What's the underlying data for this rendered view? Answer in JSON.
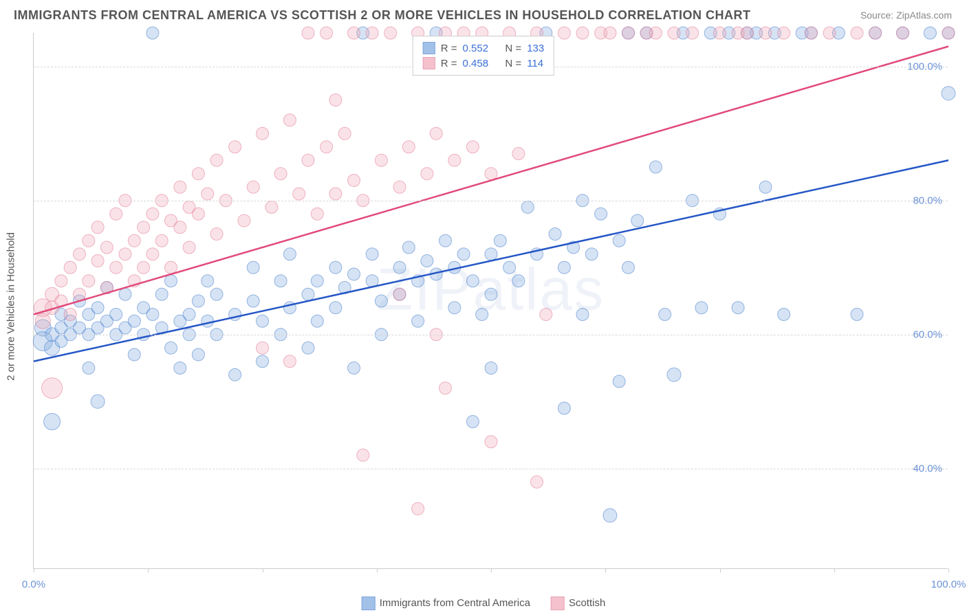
{
  "title": "IMMIGRANTS FROM CENTRAL AMERICA VS SCOTTISH 2 OR MORE VEHICLES IN HOUSEHOLD CORRELATION CHART",
  "source": "Source: ZipAtlas.com",
  "watermark": "ZIPatlas",
  "y_axis_label": "2 or more Vehicles in Household",
  "chart": {
    "type": "scatter",
    "background": "#ffffff",
    "grid_color": "#d8d8d8",
    "axis_color": "#cccccc",
    "xlim": [
      0,
      100
    ],
    "ylim": [
      25,
      105
    ],
    "y_ticks": [
      40,
      60,
      80,
      100
    ],
    "y_tick_labels": [
      "40.0%",
      "60.0%",
      "80.0%",
      "100.0%"
    ],
    "x_ticks": [
      0,
      12.5,
      25,
      37.5,
      50,
      62.5,
      75,
      87.5,
      100
    ],
    "x_tick_labels": {
      "0": "0.0%",
      "100": "100.0%"
    },
    "marker_radius": 9,
    "marker_opacity": 0.32,
    "line_width": 2.5,
    "series": [
      {
        "name": "Immigrants from Central America",
        "fill": "#7ba7e0",
        "stroke": "#4a7fc9",
        "line_color": "#2456c6",
        "R": "0.552",
        "N": "133",
        "trend": {
          "x1": 0,
          "y1": 56,
          "x2": 100,
          "y2": 86
        },
        "points": [
          [
            1,
            59,
            14
          ],
          [
            1,
            61,
            12
          ],
          [
            2,
            58,
            11
          ],
          [
            2,
            60,
            10
          ],
          [
            2,
            47,
            12
          ],
          [
            3,
            61,
            9
          ],
          [
            3,
            63,
            9
          ],
          [
            3,
            59,
            9
          ],
          [
            4,
            60,
            9
          ],
          [
            4,
            62,
            9
          ],
          [
            5,
            61,
            9
          ],
          [
            5,
            65,
            9
          ],
          [
            6,
            60,
            9
          ],
          [
            6,
            63,
            9
          ],
          [
            6,
            55,
            9
          ],
          [
            7,
            61,
            9
          ],
          [
            7,
            64,
            9
          ],
          [
            7,
            50,
            10
          ],
          [
            8,
            62,
            9
          ],
          [
            8,
            67,
            9
          ],
          [
            9,
            60,
            9
          ],
          [
            9,
            63,
            9
          ],
          [
            10,
            61,
            9
          ],
          [
            10,
            66,
            9
          ],
          [
            11,
            62,
            9
          ],
          [
            11,
            57,
            9
          ],
          [
            12,
            60,
            9
          ],
          [
            12,
            64,
            9
          ],
          [
            13,
            105,
            9
          ],
          [
            13,
            63,
            9
          ],
          [
            14,
            61,
            9
          ],
          [
            14,
            66,
            9
          ],
          [
            15,
            58,
            9
          ],
          [
            15,
            68,
            9
          ],
          [
            16,
            62,
            9
          ],
          [
            16,
            55,
            9
          ],
          [
            17,
            63,
            9
          ],
          [
            17,
            60,
            9
          ],
          [
            18,
            65,
            9
          ],
          [
            18,
            57,
            9
          ],
          [
            19,
            62,
            9
          ],
          [
            19,
            68,
            9
          ],
          [
            20,
            60,
            9
          ],
          [
            20,
            66,
            9
          ],
          [
            22,
            63,
            9
          ],
          [
            22,
            54,
            9
          ],
          [
            24,
            65,
            9
          ],
          [
            24,
            70,
            9
          ],
          [
            25,
            62,
            9
          ],
          [
            25,
            56,
            9
          ],
          [
            27,
            68,
            9
          ],
          [
            27,
            60,
            9
          ],
          [
            28,
            64,
            9
          ],
          [
            28,
            72,
            9
          ],
          [
            30,
            66,
            9
          ],
          [
            30,
            58,
            9
          ],
          [
            31,
            68,
            9
          ],
          [
            31,
            62,
            9
          ],
          [
            33,
            70,
            9
          ],
          [
            33,
            64,
            9
          ],
          [
            34,
            67,
            9
          ],
          [
            35,
            69,
            9
          ],
          [
            35,
            55,
            9
          ],
          [
            36,
            105,
            9
          ],
          [
            37,
            68,
            9
          ],
          [
            37,
            72,
            9
          ],
          [
            38,
            65,
            9
          ],
          [
            38,
            60,
            9
          ],
          [
            40,
            70,
            9
          ],
          [
            40,
            66,
            9
          ],
          [
            41,
            73,
            9
          ],
          [
            42,
            68,
            9
          ],
          [
            42,
            62,
            9
          ],
          [
            43,
            71,
            9
          ],
          [
            44,
            69,
            9
          ],
          [
            44,
            105,
            9
          ],
          [
            45,
            74,
            9
          ],
          [
            46,
            70,
            9
          ],
          [
            46,
            64,
            9
          ],
          [
            47,
            72,
            9
          ],
          [
            48,
            68,
            9
          ],
          [
            48,
            47,
            9
          ],
          [
            49,
            63,
            9
          ],
          [
            50,
            66,
            9
          ],
          [
            50,
            72,
            9
          ],
          [
            50,
            55,
            9
          ],
          [
            51,
            74,
            9
          ],
          [
            52,
            70,
            9
          ],
          [
            53,
            68,
            9
          ],
          [
            54,
            79,
            9
          ],
          [
            55,
            72,
            9
          ],
          [
            56,
            105,
            9
          ],
          [
            57,
            75,
            9
          ],
          [
            58,
            70,
            9
          ],
          [
            58,
            49,
            9
          ],
          [
            59,
            73,
            9
          ],
          [
            60,
            80,
            9
          ],
          [
            60,
            63,
            9
          ],
          [
            61,
            72,
            9
          ],
          [
            62,
            78,
            9
          ],
          [
            63,
            33,
            10
          ],
          [
            64,
            74,
            9
          ],
          [
            64,
            53,
            9
          ],
          [
            65,
            105,
            9
          ],
          [
            65,
            70,
            9
          ],
          [
            66,
            77,
            9
          ],
          [
            67,
            105,
            9
          ],
          [
            68,
            85,
            9
          ],
          [
            69,
            63,
            9
          ],
          [
            70,
            54,
            10
          ],
          [
            71,
            105,
            9
          ],
          [
            72,
            80,
            9
          ],
          [
            73,
            64,
            9
          ],
          [
            74,
            105,
            9
          ],
          [
            75,
            78,
            9
          ],
          [
            76,
            105,
            9
          ],
          [
            77,
            64,
            9
          ],
          [
            78,
            105,
            9
          ],
          [
            79,
            105,
            9
          ],
          [
            80,
            82,
            9
          ],
          [
            81,
            105,
            9
          ],
          [
            82,
            63,
            9
          ],
          [
            84,
            105,
            9
          ],
          [
            85,
            105,
            9
          ],
          [
            88,
            105,
            9
          ],
          [
            90,
            63,
            9
          ],
          [
            92,
            105,
            9
          ],
          [
            95,
            105,
            9
          ],
          [
            98,
            105,
            9
          ],
          [
            100,
            96,
            10
          ],
          [
            100,
            105,
            9
          ]
        ]
      },
      {
        "name": "Scottish",
        "fill": "#f0a8b8",
        "stroke": "#e07a95",
        "line_color": "#e14a7a",
        "R": "0.458",
        "N": "114",
        "trend": {
          "x1": 0,
          "y1": 63,
          "x2": 100,
          "y2": 103
        },
        "points": [
          [
            1,
            64,
            13
          ],
          [
            1,
            62,
            11
          ],
          [
            2,
            64,
            10
          ],
          [
            2,
            66,
            10
          ],
          [
            2,
            52,
            15
          ],
          [
            3,
            65,
            9
          ],
          [
            3,
            68,
            9
          ],
          [
            4,
            63,
            9
          ],
          [
            4,
            70,
            9
          ],
          [
            5,
            66,
            9
          ],
          [
            5,
            72,
            9
          ],
          [
            6,
            68,
            9
          ],
          [
            6,
            74,
            9
          ],
          [
            7,
            71,
            9
          ],
          [
            7,
            76,
            9
          ],
          [
            8,
            67,
            9
          ],
          [
            8,
            73,
            9
          ],
          [
            9,
            70,
            9
          ],
          [
            9,
            78,
            9
          ],
          [
            10,
            72,
            9
          ],
          [
            10,
            80,
            9
          ],
          [
            11,
            74,
            9
          ],
          [
            11,
            68,
            9
          ],
          [
            12,
            76,
            9
          ],
          [
            12,
            70,
            9
          ],
          [
            13,
            78,
            9
          ],
          [
            13,
            72,
            9
          ],
          [
            14,
            80,
            9
          ],
          [
            14,
            74,
            9
          ],
          [
            15,
            77,
            9
          ],
          [
            15,
            70,
            9
          ],
          [
            16,
            82,
            9
          ],
          [
            16,
            76,
            9
          ],
          [
            17,
            79,
            9
          ],
          [
            17,
            73,
            9
          ],
          [
            18,
            84,
            9
          ],
          [
            18,
            78,
            9
          ],
          [
            19,
            81,
            9
          ],
          [
            20,
            86,
            9
          ],
          [
            20,
            75,
            9
          ],
          [
            21,
            80,
            9
          ],
          [
            22,
            88,
            9
          ],
          [
            23,
            77,
            9
          ],
          [
            24,
            82,
            9
          ],
          [
            25,
            90,
            9
          ],
          [
            25,
            58,
            9
          ],
          [
            26,
            79,
            9
          ],
          [
            27,
            84,
            9
          ],
          [
            28,
            92,
            9
          ],
          [
            28,
            56,
            9
          ],
          [
            29,
            81,
            9
          ],
          [
            30,
            86,
            9
          ],
          [
            30,
            105,
            9
          ],
          [
            31,
            78,
            9
          ],
          [
            32,
            105,
            9
          ],
          [
            32,
            88,
            9
          ],
          [
            33,
            81,
            9
          ],
          [
            33,
            95,
            9
          ],
          [
            34,
            90,
            9
          ],
          [
            35,
            105,
            9
          ],
          [
            35,
            83,
            9
          ],
          [
            36,
            80,
            9
          ],
          [
            36,
            42,
            9
          ],
          [
            37,
            105,
            9
          ],
          [
            38,
            86,
            9
          ],
          [
            39,
            105,
            9
          ],
          [
            40,
            82,
            9
          ],
          [
            40,
            66,
            9
          ],
          [
            41,
            88,
            9
          ],
          [
            42,
            105,
            9
          ],
          [
            42,
            34,
            9
          ],
          [
            43,
            84,
            9
          ],
          [
            44,
            90,
            9
          ],
          [
            44,
            60,
            9
          ],
          [
            45,
            105,
            9
          ],
          [
            45,
            52,
            9
          ],
          [
            46,
            86,
            9
          ],
          [
            47,
            105,
            9
          ],
          [
            48,
            88,
            9
          ],
          [
            49,
            105,
            9
          ],
          [
            50,
            84,
            9
          ],
          [
            50,
            44,
            9
          ],
          [
            52,
            105,
            9
          ],
          [
            53,
            87,
            9
          ],
          [
            55,
            105,
            9
          ],
          [
            55,
            38,
            9
          ],
          [
            56,
            63,
            9
          ],
          [
            58,
            105,
            9
          ],
          [
            60,
            105,
            9
          ],
          [
            62,
            105,
            9
          ],
          [
            63,
            105,
            9
          ],
          [
            65,
            105,
            9
          ],
          [
            67,
            105,
            9
          ],
          [
            68,
            105,
            9
          ],
          [
            70,
            105,
            9
          ],
          [
            72,
            105,
            9
          ],
          [
            75,
            105,
            9
          ],
          [
            77,
            105,
            9
          ],
          [
            78,
            105,
            9
          ],
          [
            80,
            105,
            9
          ],
          [
            82,
            105,
            9
          ],
          [
            85,
            105,
            9
          ],
          [
            87,
            105,
            9
          ],
          [
            90,
            105,
            9
          ],
          [
            92,
            105,
            9
          ],
          [
            95,
            105,
            9
          ],
          [
            100,
            105,
            9
          ]
        ]
      }
    ]
  },
  "stats_box": {
    "r_label": "R =",
    "n_label": "N ="
  },
  "bottom_legend": [
    {
      "label": "Immigrants from Central America",
      "series_idx": 0
    },
    {
      "label": "Scottish",
      "series_idx": 1
    }
  ]
}
